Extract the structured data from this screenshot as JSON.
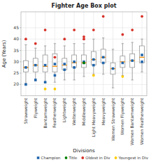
{
  "chart_data": {
    "type": "box",
    "title": "Fighter Age Box plot",
    "x_label": "Divisions",
    "y_label": "Age (Years)",
    "categories": [
      "Strawweight",
      "Flyweight",
      "Bantamweight",
      "Featherweight",
      "Lightweight",
      "Welterweight",
      "Middleweight",
      "Light Heavyweight",
      "Heavyweight",
      "Women Strawweight",
      "Women Flyweight",
      "Women Bantamweight",
      "Women Featherweight"
    ],
    "boxes": [
      {
        "q1": 25.5,
        "med": 27.5,
        "q3": 30.5,
        "whislo": 20.5,
        "whishi": 37.5,
        "mean": 27.5
      },
      {
        "q1": 25.5,
        "med": 28.5,
        "q3": 31.5,
        "whislo": 21.5,
        "whishi": 36.0,
        "mean": 28.5
      },
      {
        "q1": 25.5,
        "med": 28.0,
        "q3": 33.0,
        "whislo": 21.0,
        "whishi": 37.0,
        "mean": 28.5
      },
      {
        "q1": 25.5,
        "med": 28.0,
        "q3": 33.5,
        "whislo": 21.0,
        "whishi": 38.0,
        "mean": 29.0
      },
      {
        "q1": 26.5,
        "med": 28.5,
        "q3": 31.5,
        "whislo": 22.0,
        "whishi": 37.0,
        "mean": 29.0
      },
      {
        "q1": 27.5,
        "med": 29.5,
        "q3": 33.0,
        "whislo": 22.0,
        "whishi": 38.0,
        "mean": 30.0
      },
      {
        "q1": 27.5,
        "med": 29.5,
        "q3": 33.0,
        "whislo": 23.5,
        "whishi": 38.0,
        "mean": 30.0
      },
      {
        "q1": 28.5,
        "med": 31.0,
        "q3": 34.5,
        "whislo": 24.5,
        "whishi": 40.0,
        "mean": 31.0
      },
      {
        "q1": 29.5,
        "med": 32.0,
        "q3": 35.5,
        "whislo": 24.5,
        "whishi": 40.5,
        "mean": 32.0
      },
      {
        "q1": 24.5,
        "med": 27.0,
        "q3": 29.5,
        "whislo": 18.5,
        "whishi": 35.5,
        "mean": 27.0
      },
      {
        "q1": 27.5,
        "med": 30.0,
        "q3": 32.5,
        "whislo": 24.0,
        "whishi": 38.0,
        "mean": 29.5
      },
      {
        "q1": 27.5,
        "med": 30.5,
        "q3": 33.5,
        "whislo": 22.0,
        "whishi": 38.5,
        "mean": 30.5
      },
      {
        "q1": 29.5,
        "med": 32.0,
        "q3": 37.0,
        "whislo": 25.5,
        "whishi": 40.0,
        "mean": 33.0
      }
    ],
    "series": [
      {
        "name": "Champion",
        "color": "#2166ac",
        "marker": "square",
        "values": [
          [
            20
          ],
          [
            22
          ],
          [
            21
          ],
          [
            24
          ],
          [
            26.5
          ],
          [
            27.5
          ],
          [
            29.5
          ],
          [
            28.5
          ],
          [
            29.5
          ],
          [],
          [],
          [],
          [
            30.0
          ]
        ]
      },
      {
        "name": "Title",
        "color": "#008000",
        "marker": "circle",
        "values": [
          [],
          [],
          [],
          [],
          [],
          [],
          [
            29.5
          ],
          [],
          [],
          [],
          [],
          [],
          []
        ]
      },
      {
        "name": "Oldest in Div",
        "color": "#d73027",
        "marker": "circle",
        "values": [
          [
            40
          ],
          [
            38
          ],
          [
            44
          ],
          [
            32
          ],
          [
            40
          ],
          [
            44
          ],
          [
            41,
            40
          ],
          [
            44
          ],
          [
            50
          ],
          [],
          [
            42
          ],
          [
            44
          ],
          [
            50
          ]
        ]
      },
      {
        "name": "Youngest in Div",
        "color": "#ffcc00",
        "marker": "circle",
        "values": [
          [],
          [],
          [
            18
          ],
          [
            18
          ],
          [],
          [],
          [],
          [
            24
          ],
          [],
          [],
          [
            23.5
          ],
          [],
          []
        ]
      }
    ],
    "ylim": [
      15,
      52
    ],
    "yticks": [
      20,
      25,
      30,
      35,
      40,
      45
    ],
    "grid": true,
    "legend": "lower right"
  }
}
